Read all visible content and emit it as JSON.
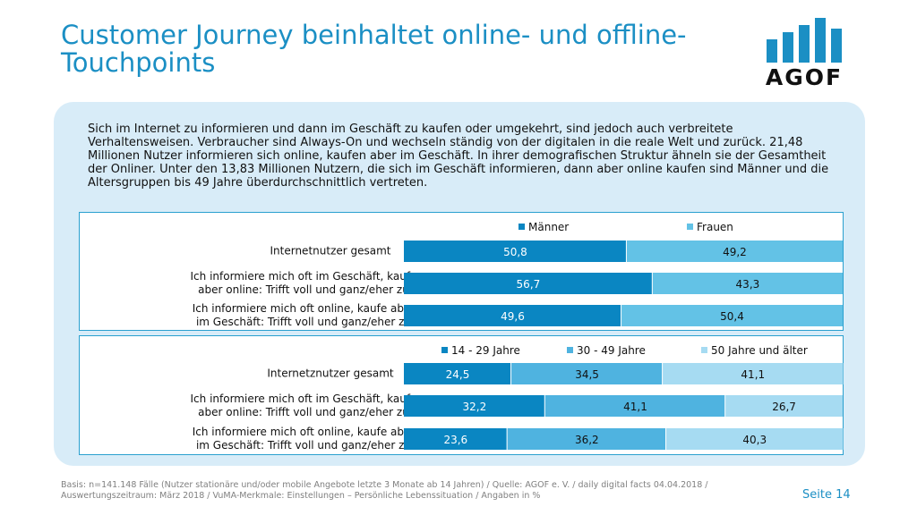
{
  "title": "Customer Journey beinhaltet online- und offline-Touchpoints",
  "logo": {
    "text": "AGOF",
    "color": "#1b8fc4"
  },
  "intro": "Sich im Internet zu informieren und dann im Geschäft zu kaufen oder umgekehrt, sind jedoch auch verbreitete Verhaltensweisen. Verbraucher sind Always-On und wechseln ständig von der digitalen in die reale Welt und zurück. 21,48 Millionen Nutzer informieren sich online, kaufen aber im Geschäft. In ihrer demografischen Struktur ähneln sie der Gesamtheit der Onliner. Unter den 13,83 Millionen Nutzern, die sich im Geschäft informieren, dann aber online kaufen sind Männer und die Altersgruppen bis 49 Jahre überdurchschnittlich vertreten.",
  "chart_data": [
    {
      "type": "bar",
      "orientation": "horizontal",
      "stacked": true,
      "categories": [
        "Internetnutzer gesamt",
        "Ich informiere mich oft im Geschäft, kaufe aber online: Trifft voll und ganz/eher zu",
        "Ich informiere mich oft online, kaufe aber im Geschäft: Trifft voll und ganz/eher zu"
      ],
      "series": [
        {
          "name": "Männer",
          "color": "#0a86c2",
          "values": [
            50.8,
            56.7,
            49.6
          ],
          "labels": [
            "50,8",
            "56,7",
            "49,6"
          ]
        },
        {
          "name": "Frauen",
          "color": "#63c2e6",
          "values": [
            49.2,
            43.3,
            50.4
          ],
          "labels": [
            "49,2",
            "43,3",
            "50,4"
          ]
        }
      ],
      "xlim": [
        0,
        100
      ],
      "legend": "top"
    },
    {
      "type": "bar",
      "orientation": "horizontal",
      "stacked": true,
      "categories": [
        "Internetznutzer gesamt",
        "Ich informiere mich oft im Geschäft, kaufe aber online: Trifft voll und ganz/eher zu",
        "Ich informiere mich oft online, kaufe aber im Geschäft: Trifft voll und ganz/eher zu"
      ],
      "series": [
        {
          "name": "14 - 29 Jahre",
          "color": "#0a86c2",
          "values": [
            24.5,
            32.2,
            23.6
          ],
          "labels": [
            "24,5",
            "32,2",
            "23,6"
          ]
        },
        {
          "name": "30 - 49 Jahre",
          "color": "#4fb3e0",
          "values": [
            34.5,
            41.1,
            36.2
          ],
          "labels": [
            "34,5",
            "41,1",
            "36,2"
          ]
        },
        {
          "name": "50 Jahre und älter",
          "color": "#a6dbf2",
          "values": [
            41.1,
            26.7,
            40.3
          ],
          "labels": [
            "41,1",
            "26,7",
            "40,3"
          ]
        }
      ],
      "xlim": [
        0,
        100
      ],
      "legend": "top"
    }
  ],
  "footer": "Basis: n=141.148 Fälle (Nutzer stationäre und/oder mobile Angebote letzte 3 Monate ab 14 Jahren) / Quelle: AGOF e. V. / daily digital facts 04.04.2018 / Auswertungszeitraum: März 2018 / VuMA-Merkmale: Einstellungen – Persönliche Lebenssituation / Angaben in %",
  "page": "Seite 14"
}
